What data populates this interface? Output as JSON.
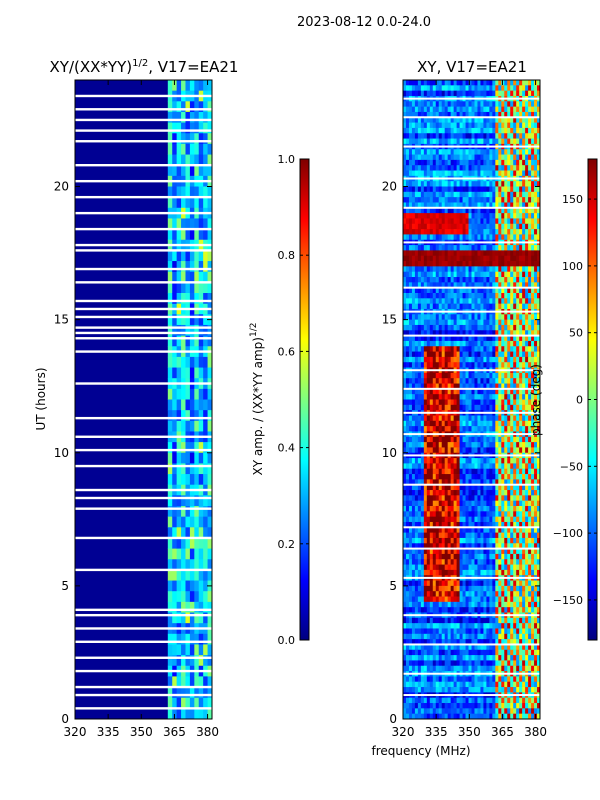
{
  "figure": {
    "suptitle": "2023-08-12 0.0-24.0",
    "shared_xlabel": "frequency (MHz)"
  },
  "colors": {
    "jet": [
      "#00007f",
      "#0000ff",
      "#007fff",
      "#00ffff",
      "#7fff7f",
      "#ffff00",
      "#ff7f00",
      "#ff0000",
      "#7f0000"
    ],
    "gap": "#ffffff"
  },
  "chart_data": [
    {
      "type": "heatmap",
      "title": "XY/(XX*YY)^1/2, V17=EA21",
      "title_main": "XY/(XX*YY)",
      "title_exp": "1/2",
      "title_tail": ", V17=EA21",
      "xlabel": "",
      "ylabel": "UT (hours)",
      "xlim": [
        320,
        382
      ],
      "ylim": [
        0,
        24
      ],
      "xticks": [
        320,
        335,
        350,
        365,
        380
      ],
      "yticks": [
        0,
        5,
        10,
        15,
        20
      ],
      "colorbar": {
        "label": "XY amp. / (XX*YY amp)^1/2",
        "label_main": "XY amp. / (XX*YY amp)",
        "label_exp": "1/2",
        "range": [
          0.0,
          1.0
        ],
        "ticks": [
          "0.0",
          "0.2",
          "0.4",
          "0.6",
          "0.8",
          "1.0"
        ],
        "tick_values": [
          0.0,
          0.2,
          0.4,
          0.6,
          0.8,
          1.0
        ],
        "colormap": "jet"
      },
      "structure": {
        "background_value": 0.02,
        "high_band_mhz": [
          362,
          382
        ],
        "high_band_value_range": [
          0.15,
          0.45
        ],
        "occasional_peak_value": 0.6,
        "flagged_rows_ut": [
          0.4,
          0.9,
          1.2,
          1.8,
          2.3,
          2.9,
          3.4,
          3.9,
          4.1,
          5.6,
          6.8,
          7.9,
          8.3,
          8.6,
          9.5,
          10.1,
          10.6,
          11.3,
          12.6,
          13.8,
          14.3,
          14.5,
          14.7,
          15.1,
          15.4,
          15.7,
          16.4,
          16.9,
          17.6,
          17.8,
          18.4,
          19.0,
          19.6,
          20.2,
          20.8,
          21.7,
          22.1,
          22.5,
          22.9,
          23.4
        ]
      }
    },
    {
      "type": "heatmap",
      "title": "XY, V17=EA21",
      "xlabel": "frequency (MHz)",
      "ylabel": "",
      "xlim": [
        320,
        382
      ],
      "ylim": [
        0,
        24
      ],
      "xticks": [
        320,
        335,
        350,
        365,
        380
      ],
      "yticks": [
        0,
        5,
        10,
        15,
        20
      ],
      "colorbar": {
        "label": "phase (deg)",
        "range": [
          -180,
          180
        ],
        "ticks": [
          "−150",
          "−100",
          "−50",
          "0",
          "50",
          "100",
          "150"
        ],
        "tick_values": [
          -150,
          -100,
          -50,
          0,
          50,
          100,
          150
        ],
        "colormap": "jet"
      },
      "structure": {
        "background_phase_deg": -100,
        "warm_region_mhz": [
          330,
          345
        ],
        "warm_region_ut": [
          4.5,
          14.0
        ],
        "warm_region_phase_deg": 150,
        "strong_band_ut": [
          17.0,
          17.6
        ],
        "strong_band_phase_deg": 170,
        "orange_block_ut": [
          18.3,
          18.9
        ],
        "orange_block_mhz": [
          320,
          350
        ],
        "striped_band_mhz": [
          362,
          382
        ],
        "flagged_rows_ut": [
          0.9,
          1.7,
          2.8,
          3.9,
          5.3,
          6.4,
          7.2,
          8.8,
          9.9,
          10.7,
          11.5,
          12.4,
          13.1,
          14.4,
          15.3,
          16.2,
          17.9,
          19.2,
          20.3,
          21.5,
          22.6,
          23.3
        ]
      }
    }
  ]
}
